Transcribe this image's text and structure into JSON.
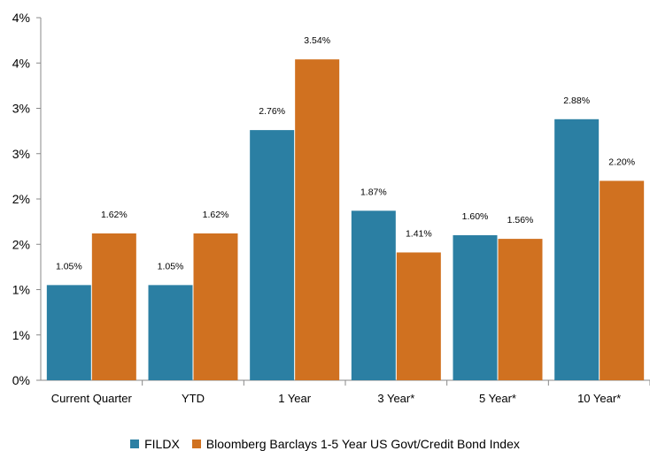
{
  "chart_data": {
    "type": "bar",
    "categories": [
      "Current Quarter",
      "YTD",
      "1 Year",
      "3 Year*",
      "5 Year*",
      "10 Year*"
    ],
    "series": [
      {
        "name": "FILDX",
        "color": "#2b7fa3",
        "values": [
          1.05,
          1.05,
          2.76,
          1.87,
          1.6,
          2.88
        ],
        "labels": [
          "1.05%",
          "1.05%",
          "2.76%",
          "1.87%",
          "1.60%",
          "2.88%"
        ]
      },
      {
        "name": "Bloomberg Barclays 1-5 Year US Govt/Credit Bond Index",
        "color": "#d07120",
        "values": [
          1.62,
          1.62,
          3.54,
          1.41,
          1.56,
          2.2
        ],
        "labels": [
          "1.62%",
          "1.62%",
          "3.54%",
          "1.41%",
          "1.56%",
          "2.20%"
        ]
      }
    ],
    "ylim": [
      0,
      4
    ],
    "y_ticks": [
      0,
      0.5,
      1,
      1.5,
      2,
      2.5,
      3,
      3.5,
      4
    ],
    "y_tick_labels": [
      "0%",
      "1%",
      "1%",
      "2%",
      "2%",
      "3%",
      "3%",
      "4%",
      "4%"
    ],
    "xlabel": "",
    "ylabel": "",
    "grid": false,
    "legend_position": "bottom"
  }
}
